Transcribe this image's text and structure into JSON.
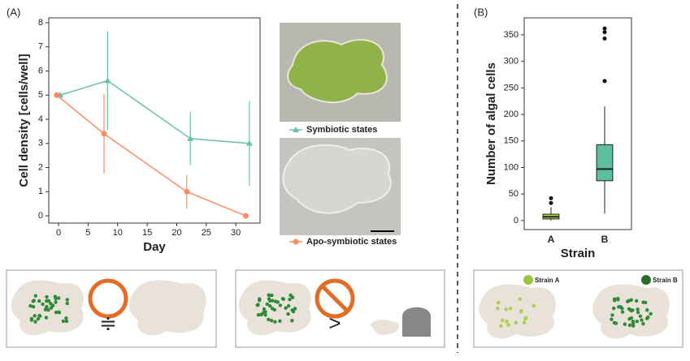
{
  "panels": [
    "(A)",
    "(B)"
  ],
  "chart_data": [
    {
      "type": "line",
      "x_label": "Day",
      "y_label": "Cell density [cells/well]",
      "xlim": [
        -1.65,
        34.1
      ],
      "xticks": [
        0,
        5,
        10,
        15,
        20,
        25,
        30
      ],
      "ylim": [
        -0.3,
        8.2
      ],
      "yticks": [
        0,
        1,
        2,
        3,
        4,
        5,
        6,
        7,
        8
      ],
      "series": [
        {
          "name": "Symbiotic states",
          "color": "#66c2a5",
          "marker": "triangle",
          "x": [
            0.3,
            8.3,
            22.3,
            32.3
          ],
          "values": [
            5.0,
            5.6,
            3.2,
            3.0
          ],
          "errors": [
            0.05,
            2.05,
            1.1,
            1.75
          ]
        },
        {
          "name": "Apo-symbiotic states",
          "color": "#fc8d62",
          "marker": "circle",
          "x": [
            -0.3,
            7.7,
            21.7,
            31.7
          ],
          "values": [
            5.0,
            3.4,
            1.0,
            0.0
          ],
          "errors": [
            0.05,
            1.65,
            0.7,
            0.03
          ]
        }
      ]
    },
    {
      "type": "box",
      "x_label": "Strain",
      "y_label": "Number of algal cells",
      "categories": [
        "A",
        "B"
      ],
      "ylim": [
        -17,
        382
      ],
      "yticks": [
        0,
        50,
        100,
        150,
        200,
        250,
        300,
        350
      ],
      "boxes": [
        {
          "color": "#b5d84a",
          "whisker_low": 0,
          "q1": 3,
          "median": 7,
          "q3": 12,
          "whisker_high": 25,
          "outliers": [
            33,
            42
          ]
        },
        {
          "color": "#5dbf9b",
          "whisker_low": 13,
          "q1": 75,
          "median": 97,
          "q3": 143,
          "whisker_high": 215,
          "outliers": [
            263,
            343,
            355,
            362
          ]
        }
      ]
    }
  ],
  "cartoon_labels": [
    "Strain A",
    "Strain B"
  ]
}
